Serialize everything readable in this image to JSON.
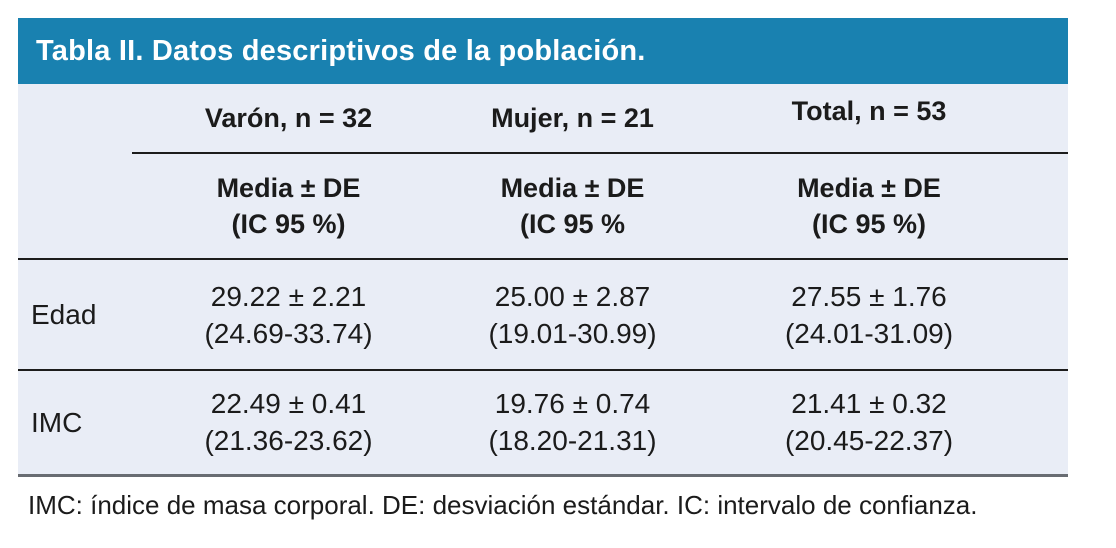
{
  "colors": {
    "title_bar_bg": "#1981b0",
    "title_text": "#ffffff",
    "table_body_bg": "#e9edf6",
    "rule_dark": "#1c1c1c",
    "bottom_rule": "#686c72",
    "text": "#1b1b1b",
    "page_bg": "#ffffff"
  },
  "table": {
    "title": "Tabla II. Datos descriptivos de la población.",
    "group_headers": [
      "Varón, n = 32",
      "Mujer, n = 21",
      "Total, n = 53"
    ],
    "subheaders": [
      {
        "line1": "Media ± DE",
        "line2": "(IC 95 %)"
      },
      {
        "line1": "Media ± DE",
        "line2": "(IC 95 %"
      },
      {
        "line1": "Media ± DE",
        "line2": "(IC 95 %)"
      }
    ],
    "rows": [
      {
        "label": "Edad",
        "cells": [
          {
            "value": "29.22 ± 2.21",
            "ci": "(24.69-33.74)"
          },
          {
            "value": "25.00 ± 2.87",
            "ci": "(19.01-30.99)"
          },
          {
            "value": "27.55 ± 1.76",
            "ci": "(24.01-31.09)"
          }
        ]
      },
      {
        "label": "IMC",
        "cells": [
          {
            "value": "22.49 ± 0.41",
            "ci": "(21.36-23.62)"
          },
          {
            "value": "19.76 ± 0.74",
            "ci": "(18.20-21.31)"
          },
          {
            "value": "21.41 ± 0.32",
            "ci": "(20.45-22.37)"
          }
        ]
      }
    ],
    "footnote": "IMC: índice de masa corporal. DE: desviación estándar. IC: intervalo de confianza."
  },
  "chart_data": {
    "type": "table",
    "title": "Tabla II. Datos descriptivos de la población.",
    "columns": [
      "",
      "Varón, n = 32 · Media ± DE (IC 95 %)",
      "Mujer, n = 21 · Media ± DE (IC 95 %",
      "Total, n = 53 · Media ± DE (IC 95 %)"
    ],
    "rows": [
      [
        "Edad",
        "29.22 ± 2.21 (24.69-33.74)",
        "25.00 ± 2.87 (19.01-30.99)",
        "27.55 ± 1.76 (24.01-31.09)"
      ],
      [
        "IMC",
        "22.49 ± 0.41 (21.36-23.62)",
        "19.76 ± 0.74 (18.20-21.31)",
        "21.41 ± 0.32 (20.45-22.37)"
      ]
    ],
    "footnote": "IMC: índice de masa corporal. DE: desviación estándar. IC: intervalo de confianza."
  }
}
